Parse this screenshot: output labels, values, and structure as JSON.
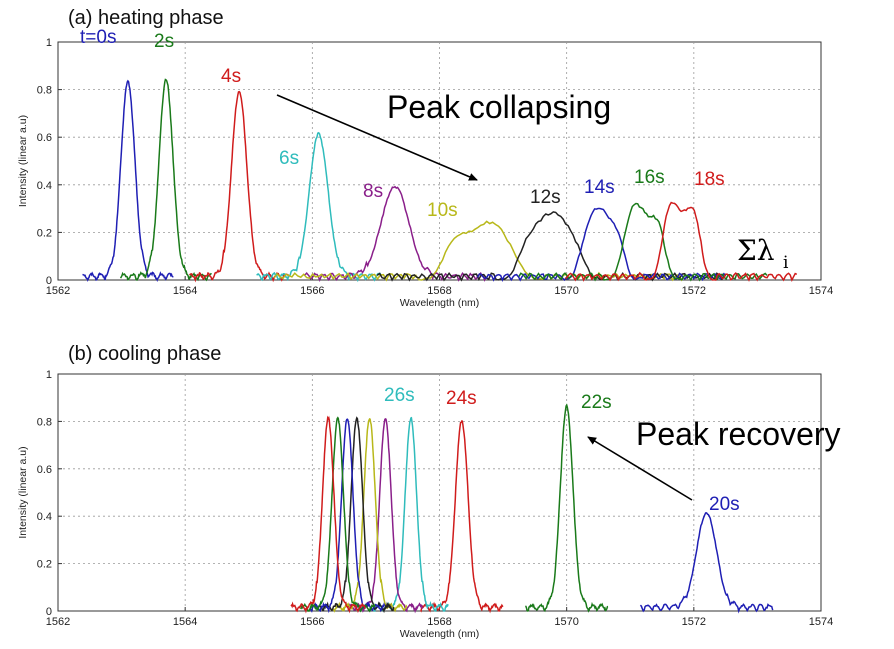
{
  "chart_data": [
    {
      "type": "line",
      "title": "(a) heating phase",
      "xlabel": "Wavelength (nm)",
      "ylabel": "Intensity (linear a.u)",
      "xlim": [
        1562,
        1574
      ],
      "ylim": [
        0,
        1
      ],
      "xticks": [
        "1562",
        "1564",
        "1566",
        "1568",
        "1570",
        "1572",
        "1574"
      ],
      "yticks": [
        "0",
        "0.2",
        "0.4",
        "0.6",
        "0.8",
        "1"
      ],
      "grid": true,
      "series": [
        {
          "name": "t=0s",
          "color": "#1f1fb4",
          "center": 1563.1,
          "peak": 0.83,
          "shape": "gauss",
          "width": 0.11
        },
        {
          "name": "2s",
          "color": "#1a7a1a",
          "center": 1563.7,
          "peak": 0.84,
          "shape": "gauss",
          "width": 0.11
        },
        {
          "name": "4s",
          "color": "#d01c1c",
          "center": 1564.85,
          "peak": 0.79,
          "shape": "gauss",
          "width": 0.12
        },
        {
          "name": "6s",
          "color": "#2fbcbc",
          "center": 1566.1,
          "peak": 0.61,
          "shape": "gauss",
          "width": 0.15
        },
        {
          "name": "8s",
          "color": "#8a1f8a",
          "center": 1567.3,
          "peak": 0.39,
          "shape": "gauss",
          "width": 0.22
        },
        {
          "name": "10s",
          "color": "#b8b81a",
          "center": 1568.65,
          "peak": 0.24,
          "shape": "flat",
          "width": 0.5
        },
        {
          "name": "12s",
          "color": "#222222",
          "center": 1569.75,
          "peak": 0.28,
          "shape": "flat",
          "width": 0.42
        },
        {
          "name": "14s",
          "color": "#1f1fb4",
          "center": 1570.55,
          "peak": 0.3,
          "shape": "flat",
          "width": 0.3
        },
        {
          "name": "16s",
          "color": "#1a7a1a",
          "center": 1571.2,
          "peak": 0.32,
          "shape": "flat",
          "width": 0.3
        },
        {
          "name": "18s",
          "color": "#d01c1c",
          "center": 1571.8,
          "peak": 0.34,
          "shape": "flat",
          "width": 0.28
        }
      ],
      "annotations": {
        "arrow_label": "Peak collapsing",
        "sum_symbol": "Σλ",
        "sum_subscript": "i"
      }
    },
    {
      "type": "line",
      "title": "(b) cooling phase",
      "xlabel": "Wavelength (nm)",
      "ylabel": "Intensity (linear a.u)",
      "xlim": [
        1562,
        1574
      ],
      "ylim": [
        0,
        1
      ],
      "xticks": [
        "1562",
        "1564",
        "1566",
        "1568",
        "1570",
        "1572",
        "1574"
      ],
      "yticks": [
        "0",
        "0.2",
        "0.4",
        "0.6",
        "0.8",
        "1"
      ],
      "grid": true,
      "series": [
        {
          "name": "20s",
          "color": "#1f1fb4",
          "center": 1572.2,
          "peak": 0.41,
          "shape": "gauss",
          "width": 0.16
        },
        {
          "name": "22s",
          "color": "#1a7a1a",
          "center": 1570.0,
          "peak": 0.86,
          "shape": "gauss",
          "width": 0.1
        },
        {
          "name": "24s",
          "color": "#d01c1c",
          "center": 1568.35,
          "peak": 0.8,
          "shape": "gauss",
          "width": 0.1
        },
        {
          "name": "26s",
          "color": "#2fbcbc",
          "center": 1567.55,
          "peak": 0.81,
          "shape": "gauss",
          "width": 0.09
        },
        {
          "name": "",
          "color": "#8a1f8a",
          "center": 1567.15,
          "peak": 0.81,
          "shape": "gauss",
          "width": 0.09
        },
        {
          "name": "",
          "color": "#b8b81a",
          "center": 1566.9,
          "peak": 0.81,
          "shape": "gauss",
          "width": 0.09
        },
        {
          "name": "",
          "color": "#222222",
          "center": 1566.7,
          "peak": 0.81,
          "shape": "gauss",
          "width": 0.09
        },
        {
          "name": "",
          "color": "#1f1fb4",
          "center": 1566.55,
          "peak": 0.81,
          "shape": "gauss",
          "width": 0.09
        },
        {
          "name": "",
          "color": "#1a7a1a",
          "center": 1566.4,
          "peak": 0.81,
          "shape": "gauss",
          "width": 0.09
        },
        {
          "name": "",
          "color": "#d01c1c",
          "center": 1566.25,
          "peak": 0.81,
          "shape": "gauss",
          "width": 0.09
        }
      ],
      "annotations": {
        "arrow_label": "Peak recovery"
      }
    }
  ]
}
